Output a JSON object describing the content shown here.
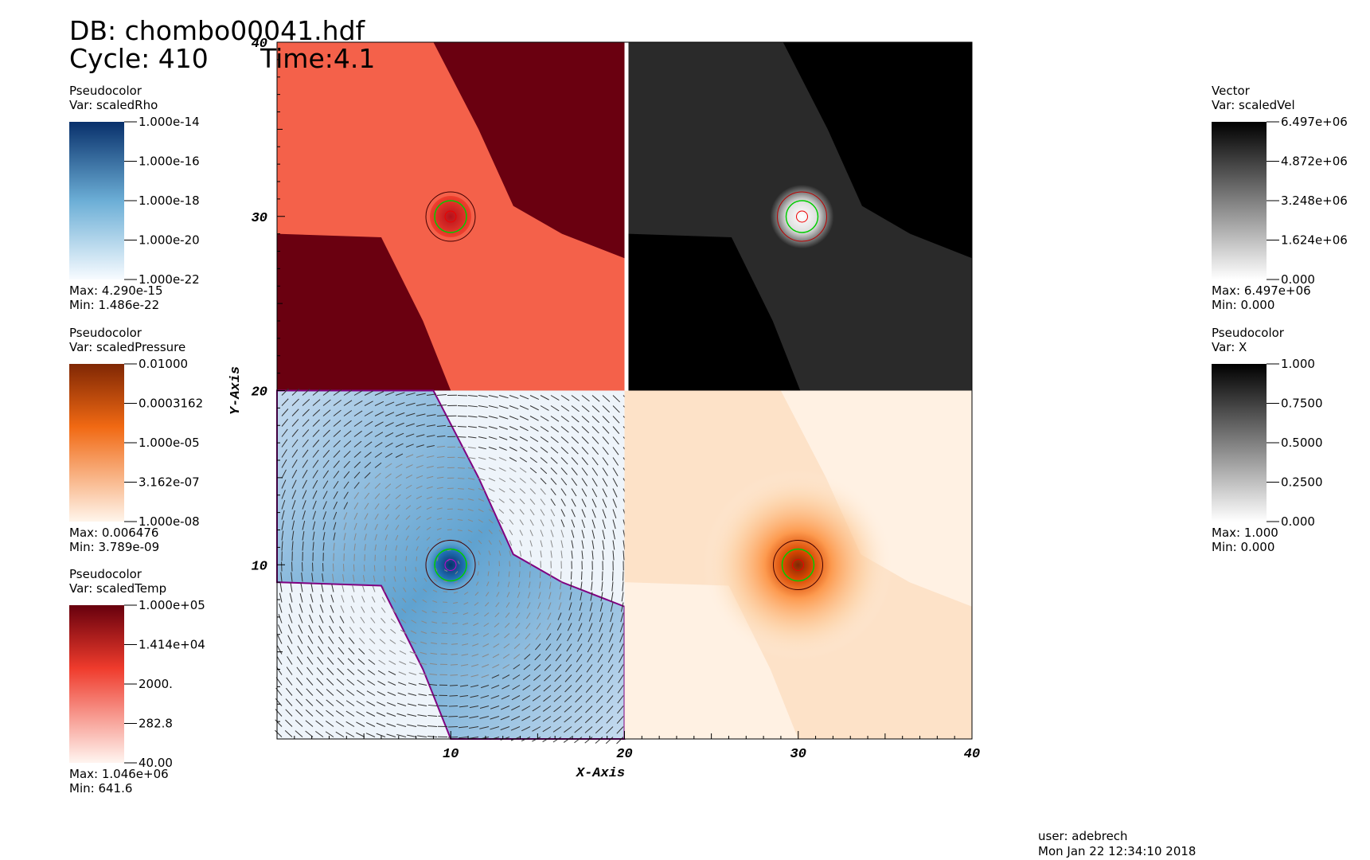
{
  "header": {
    "db": "DB: chombo00041.hdf",
    "cycle": "Cycle: 410",
    "time": "Time:4.1"
  },
  "legends": [
    {
      "plot": "Pseudocolor",
      "var": "Var: scaledRho",
      "ticks": [
        "1.000e-14",
        "1.000e-16",
        "1.000e-18",
        "1.000e-20",
        "1.000e-22"
      ],
      "max": "Max:  4.290e-15",
      "min": "Min:  1.486e-22"
    },
    {
      "plot": "Pseudocolor",
      "var": "Var: scaledPressure",
      "ticks": [
        "0.01000",
        "0.0003162",
        "1.000e-05",
        "3.162e-07",
        "1.000e-08"
      ],
      "max": "Max:  0.006476",
      "min": "Min:  3.789e-09"
    },
    {
      "plot": "Pseudocolor",
      "var": "Var: scaledTemp",
      "ticks": [
        "1.000e+05",
        "1.414e+04",
        "2000.",
        "282.8",
        "40.00"
      ],
      "max": "Max:  1.046e+06",
      "min": "Min:  641.6"
    },
    {
      "plot": "Vector",
      "var": "Var: scaledVel",
      "ticks": [
        "6.497e+06",
        "4.872e+06",
        "3.248e+06",
        "1.624e+06",
        "0.000"
      ],
      "max": "Max:  6.497e+06",
      "min": "Min:  0.000"
    },
    {
      "plot": "Pseudocolor",
      "var": "Var: X",
      "ticks": [
        "1.000",
        "0.7500",
        "0.5000",
        "0.2500",
        "0.000"
      ],
      "max": "Max:  1.000",
      "min": "Min:  0.000"
    }
  ],
  "axes": {
    "x_label": "X-Axis",
    "y_label": "Y-Axis",
    "x_ticks": [
      "10",
      "20",
      "30",
      "40"
    ],
    "y_ticks": [
      "10",
      "20",
      "30",
      "40"
    ]
  },
  "footer": {
    "user": "user: adebrech",
    "date": "Mon Jan 22 12:34:10 2018"
  }
}
